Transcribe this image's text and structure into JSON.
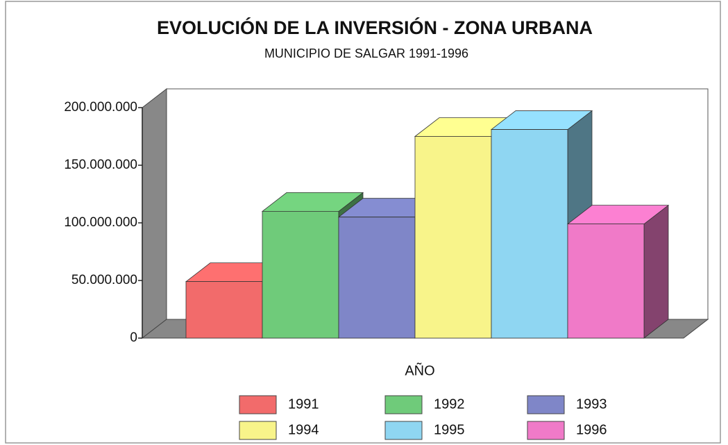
{
  "chart_data": {
    "type": "bar3d",
    "title": "EVOLUCIÓN DE LA INVERSIÓN - ZONA URBANA",
    "subtitle": "MUNICIPIO DE SALGAR 1991-1996",
    "x_label": "AÑO",
    "categories": [
      "1991",
      "1992",
      "1993",
      "1994",
      "1995",
      "1996"
    ],
    "values": [
      49000000,
      110000000,
      105000000,
      175000000,
      181000000,
      99000000
    ],
    "colors": [
      "#f26b6b",
      "#6fcb7a",
      "#7f86c8",
      "#f8f48a",
      "#8fd6f2",
      "#f07ac8"
    ],
    "ylim": [
      0,
      200000000
    ],
    "yticks": [
      0,
      {
        "value": 50000000,
        "label": "50.000.000"
      },
      {
        "value": 100000000,
        "label": "100.000.000"
      },
      {
        "value": 150000000,
        "label": "150.000.000"
      },
      {
        "value": 200000000,
        "label": "200.000.000"
      }
    ],
    "legend": "bottom"
  }
}
